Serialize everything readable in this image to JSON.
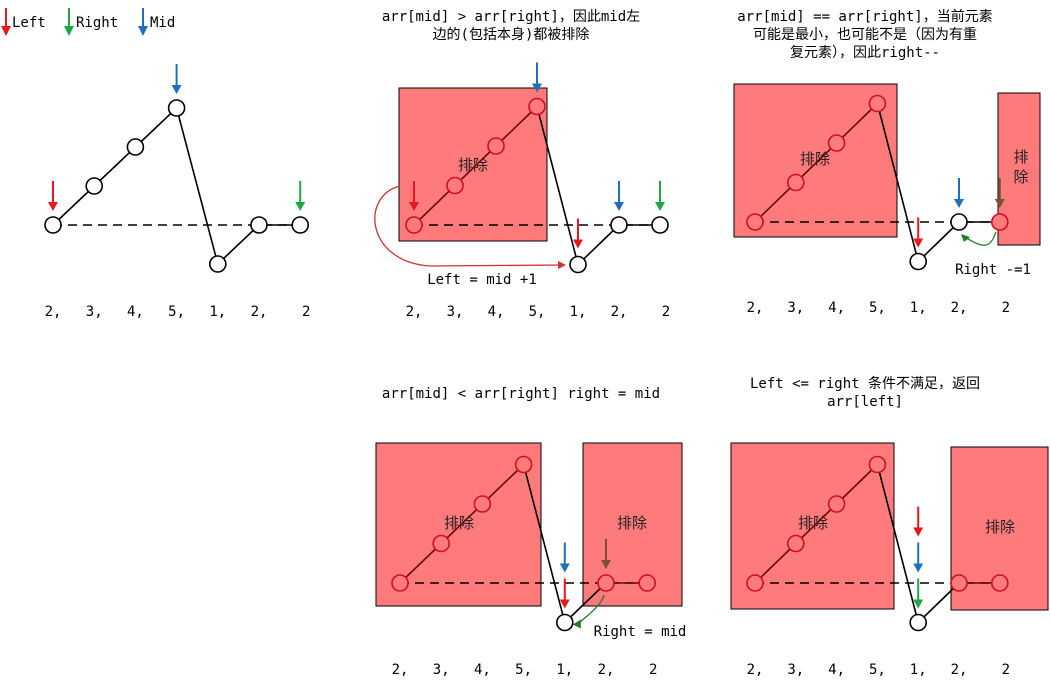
{
  "legend": {
    "left": {
      "label": "Left",
      "color": "#e8191c"
    },
    "right": {
      "label": "Right",
      "color": "#1ea843"
    },
    "mid": {
      "label": "Mid",
      "color": "#1f6fbf"
    }
  },
  "colors": {
    "excluded_fill": "#ff7b7b",
    "excluded_point": "#d0101c",
    "minus_arrow": "#7a5230",
    "left_step_arrow": "#cc3333",
    "right_step_arrow": "#1e7b2a"
  },
  "array": [
    2,
    3,
    4,
    5,
    1,
    2,
    2
  ],
  "array_labels": [
    "2,",
    "3,",
    "4,",
    "5,",
    "1,",
    "2,",
    "2"
  ],
  "excluded_label": "排除",
  "panels": [
    {
      "id": "initial",
      "caption": "",
      "note": "",
      "excluded_indices": [],
      "pointers": [
        {
          "type": "left",
          "index": 0
        },
        {
          "type": "mid",
          "index": 3
        },
        {
          "type": "right",
          "index": 6
        }
      ]
    },
    {
      "id": "case-greater",
      "caption": "arr[mid] > arr[right]，因此mid左\n边的(包括本身)都被排除",
      "note": "Left = mid +1",
      "excluded_indices": [
        0,
        1,
        2,
        3
      ],
      "pointers": [
        {
          "type": "left",
          "index": 0
        },
        {
          "type": "mid",
          "index": 3
        },
        {
          "type": "left",
          "index": 4
        },
        {
          "type": "mid",
          "index": 5
        },
        {
          "type": "right",
          "index": 6
        }
      ]
    },
    {
      "id": "case-equal",
      "caption": "arr[mid] == arr[right]，当前元素\n可能是最小，也可能不是（因为有重\n复元素），因此right--",
      "note": "Right -=1",
      "excluded_indices": [
        0,
        1,
        2,
        3,
        6
      ],
      "pointers": [
        {
          "type": "left",
          "index": 4
        },
        {
          "type": "mid",
          "index": 5
        },
        {
          "type": "minus",
          "index": 6
        }
      ]
    },
    {
      "id": "case-less",
      "caption": "arr[mid] < arr[right] right = mid",
      "note": "Right = mid",
      "excluded_indices": [
        0,
        1,
        2,
        3,
        5,
        6
      ],
      "pointers": [
        {
          "type": "left",
          "index": 4
        },
        {
          "type": "mid",
          "index": 4
        },
        {
          "type": "minus",
          "index": 5
        }
      ]
    },
    {
      "id": "case-end",
      "caption": "Left <= right 条件不满足，返回\narr[left]",
      "note": "",
      "excluded_indices": [
        0,
        1,
        2,
        3,
        5,
        6
      ],
      "pointers": [
        {
          "type": "right",
          "index": 4
        },
        {
          "type": "mid",
          "index": 4
        },
        {
          "type": "left",
          "index": 4
        }
      ]
    }
  ]
}
